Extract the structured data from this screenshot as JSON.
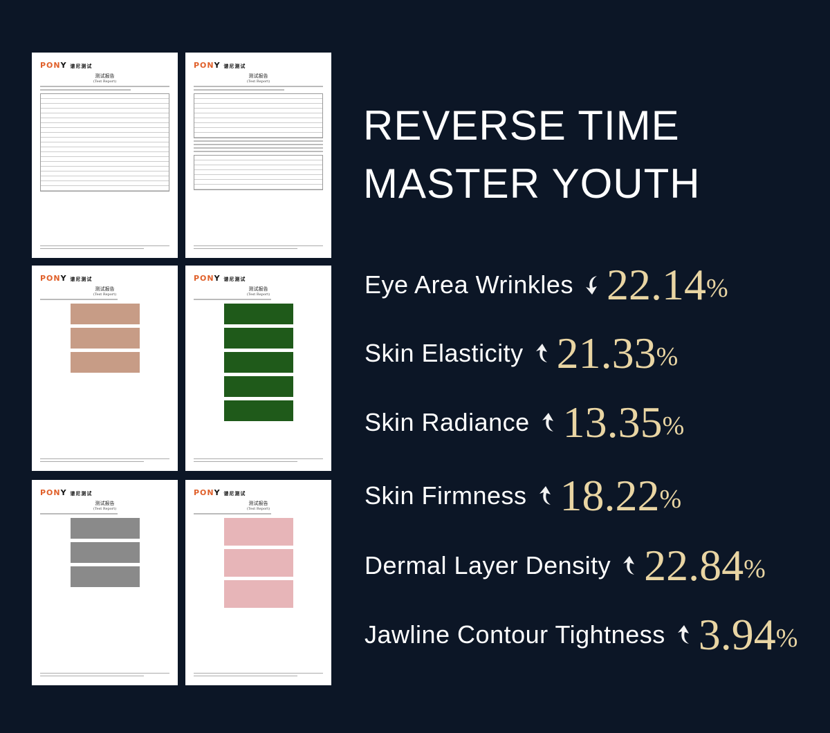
{
  "headline": {
    "line1": "REVERSE TIME",
    "line2": "MASTER YOUTH"
  },
  "accent_color": "#e9d5a3",
  "background_color": "#0c1626",
  "report_pages": [
    {
      "logo": "PONY",
      "title": "测试报告",
      "subtitle": "(Test Report)",
      "content": "table"
    },
    {
      "logo": "PONY",
      "title": "测试报告",
      "subtitle": "(Test Report)",
      "content": "table"
    },
    {
      "logo": "PONY",
      "title": "测试报告",
      "subtitle": "(Test Report)",
      "content": "face-photos"
    },
    {
      "logo": "PONY",
      "title": "测试报告",
      "subtitle": "(Test Report)",
      "content": "dermal-microscopy"
    },
    {
      "logo": "PONY",
      "title": "测试报告",
      "subtitle": "(Test Report)",
      "content": "skin-texture"
    },
    {
      "logo": "PONY",
      "title": "测试报告",
      "subtitle": "(Test Report)",
      "content": "face-heatmaps"
    }
  ],
  "metrics": [
    {
      "label": "Eye Area Wrinkles",
      "direction": "down",
      "value": "22.14",
      "unit": "%"
    },
    {
      "label": "Skin Elasticity",
      "direction": "up",
      "value": "21.33",
      "unit": "%"
    },
    {
      "label": "Skin Radiance",
      "direction": "up",
      "value": "13.35",
      "unit": "%"
    },
    {
      "label": "Skin Firmness",
      "direction": "up",
      "value": "18.22",
      "unit": "%"
    },
    {
      "label": "Dermal Layer Density",
      "direction": "up",
      "value": "22.84",
      "unit": "%"
    },
    {
      "label": "Jawline Contour Tightness",
      "direction": "up",
      "value": "3.94",
      "unit": "%"
    }
  ]
}
